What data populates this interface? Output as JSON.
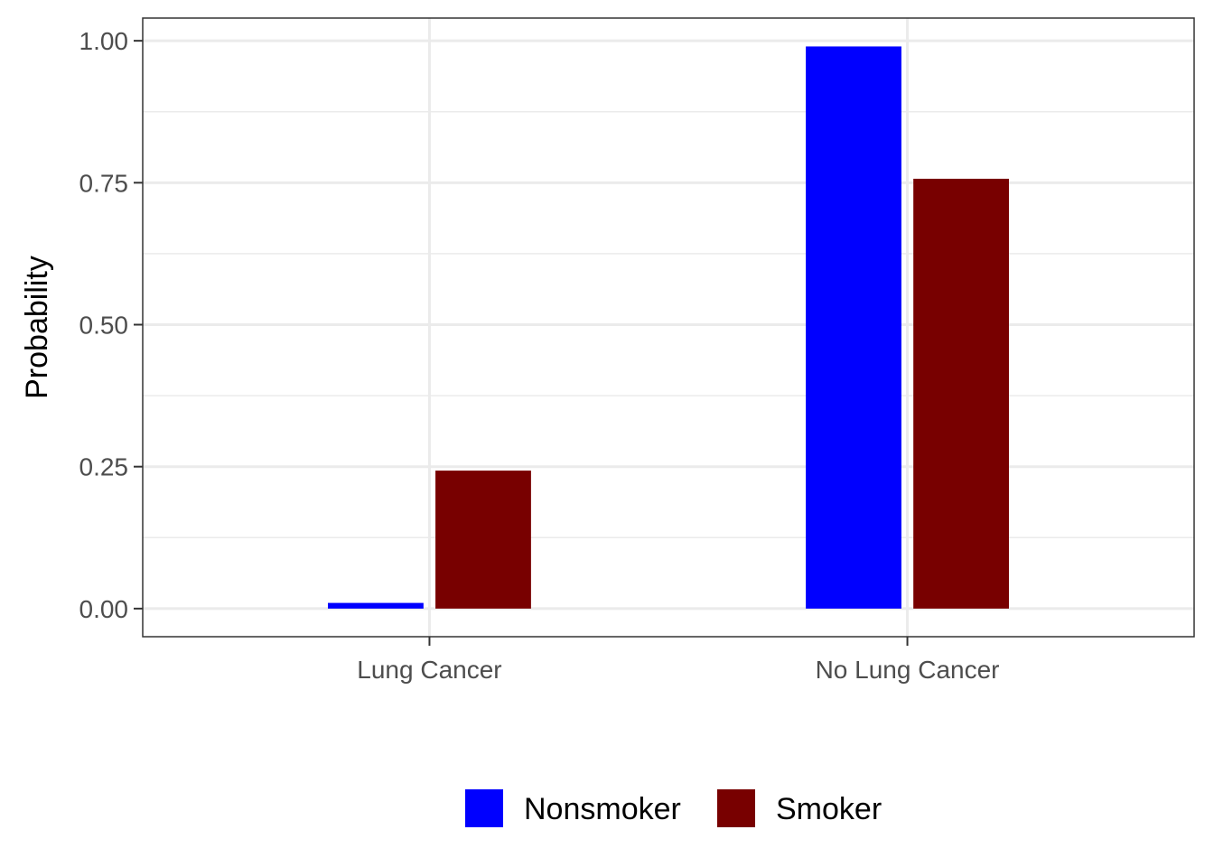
{
  "chart_data": {
    "type": "bar",
    "title": "",
    "xlabel": "",
    "ylabel": "Probability",
    "categories": [
      "Lung Cancer",
      "No Lung Cancer"
    ],
    "series": [
      {
        "name": "Nonsmoker",
        "color": "#0000FF",
        "values": [
          0.01,
          0.99
        ]
      },
      {
        "name": "Smoker",
        "color": "#780000",
        "values": [
          0.243,
          0.757
        ]
      }
    ],
    "ylim": [
      -0.0495,
      1.04
    ],
    "yticks": [
      0.0,
      0.25,
      0.5,
      0.75,
      1.0
    ],
    "ytick_labels": [
      "0.00",
      "0.25",
      "0.50",
      "0.75",
      "1.00"
    ],
    "grid": true,
    "legend_position": "bottom"
  }
}
